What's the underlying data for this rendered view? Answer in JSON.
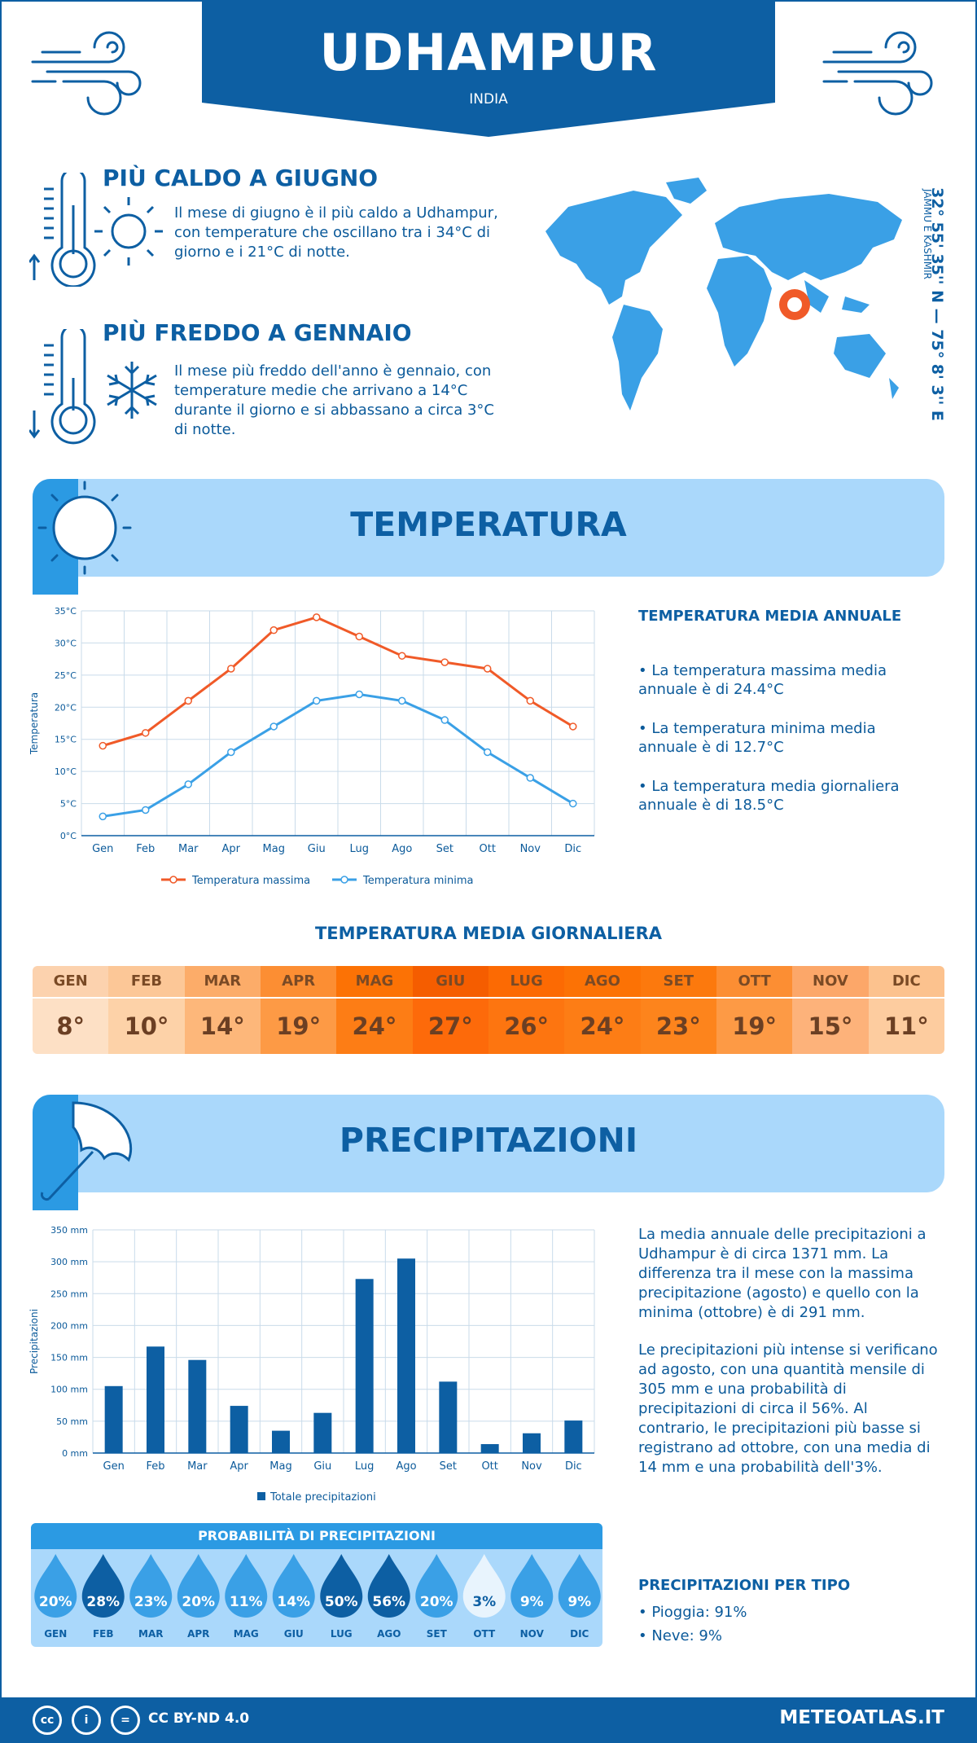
{
  "header": {
    "city": "UDHAMPUR",
    "country": "INDIA"
  },
  "hot": {
    "title": "PIÙ CALDO A GIUGNO",
    "text": "Il mese di giugno è il più caldo a Udhampur, con temperature che oscillano tra i 34°C di giorno e i 21°C di notte."
  },
  "cold": {
    "title": "PIÙ FREDDO A GENNAIO",
    "text": "Il mese più freddo dell'anno è gennaio, con temperature medie che arrivano a 14°C durante il giorno e si abbassano a circa 3°C di notte."
  },
  "location": {
    "coordinates": "32° 55' 35'' N — 75° 8' 3'' E",
    "region": "JAMMU E KASHMIR"
  },
  "temperature_section": {
    "title": "TEMPERATURA",
    "annual_title": "TEMPERATURA MEDIA ANNUALE",
    "bullets": [
      "• La temperatura massima media annuale è di 24.4°C",
      "• La temperatura minima media annuale è di 12.7°C",
      "• La temperatura media giornaliera annuale è di 18.5°C"
    ],
    "daily_title": "TEMPERATURA MEDIA GIORNALIERA",
    "daily": [
      {
        "month": "GEN",
        "value": "8°",
        "bg": "#fde0c5",
        "head": "#fcd2ae"
      },
      {
        "month": "FEB",
        "value": "10°",
        "bg": "#fdd2a8",
        "head": "#fcc797"
      },
      {
        "month": "MAR",
        "value": "14°",
        "bg": "#fdb77a",
        "head": "#fcac69"
      },
      {
        "month": "APR",
        "value": "19°",
        "bg": "#fd9a45",
        "head": "#fc8e33"
      },
      {
        "month": "MAG",
        "value": "24°",
        "bg": "#fd7d15",
        "head": "#fc7205"
      },
      {
        "month": "GIU",
        "value": "27°",
        "bg": "#fd6a0a",
        "head": "#f55d00"
      },
      {
        "month": "LUG",
        "value": "26°",
        "bg": "#fd7510",
        "head": "#fc6a03"
      },
      {
        "month": "AGO",
        "value": "24°",
        "bg": "#fd7d15",
        "head": "#fc7205"
      },
      {
        "month": "SET",
        "value": "23°",
        "bg": "#fd841c",
        "head": "#fc790d"
      },
      {
        "month": "OTT",
        "value": "19°",
        "bg": "#fd9a45",
        "head": "#fc8e33"
      },
      {
        "month": "NOV",
        "value": "15°",
        "bg": "#fdb27a",
        "head": "#fca769"
      },
      {
        "month": "DIC",
        "value": "11°",
        "bg": "#fdcc9f",
        "head": "#fcc28e"
      }
    ]
  },
  "precip_section": {
    "title": "PRECIPITAZIONI",
    "para1": "La media annuale delle precipitazioni a Udhampur è di circa 1371 mm. La differenza tra il mese con la massima precipitazione (agosto) e quello con la minima (ottobre) è di 291 mm.",
    "para2": "Le precipitazioni più intense si verificano ad agosto, con una quantità mensile di 305 mm e una probabilità di precipitazioni di circa il 56%. Al contrario, le precipitazioni più basse si registrano ad ottobre, con una media di 14 mm e una probabilità dell'3%.",
    "prob_title": "PROBABILITÀ DI PRECIPITAZIONI",
    "probabilities": [
      {
        "month": "GEN",
        "value": "20%",
        "color": "#3aa0e6"
      },
      {
        "month": "FEB",
        "value": "28%",
        "color": "#0d5fa3"
      },
      {
        "month": "MAR",
        "value": "23%",
        "color": "#3aa0e6"
      },
      {
        "month": "APR",
        "value": "20%",
        "color": "#3aa0e6"
      },
      {
        "month": "MAG",
        "value": "11%",
        "color": "#3aa0e6"
      },
      {
        "month": "GIU",
        "value": "14%",
        "color": "#3aa0e6"
      },
      {
        "month": "LUG",
        "value": "50%",
        "color": "#0d5fa3"
      },
      {
        "month": "AGO",
        "value": "56%",
        "color": "#0d5fa3"
      },
      {
        "month": "SET",
        "value": "20%",
        "color": "#3aa0e6"
      },
      {
        "month": "OTT",
        "value": "3%",
        "color": "#e8f4fd"
      },
      {
        "month": "NOV",
        "value": "9%",
        "color": "#3aa0e6"
      },
      {
        "month": "DIC",
        "value": "9%",
        "color": "#3aa0e6"
      }
    ],
    "type_title": "PRECIPITAZIONI PER TIPO",
    "types": [
      "• Pioggia: 91%",
      "• Neve: 9%"
    ]
  },
  "footer": {
    "license": "CC BY-ND 4.0",
    "site": "METEOATLAS.IT"
  },
  "chart_data": [
    {
      "type": "line",
      "categories": [
        "Gen",
        "Feb",
        "Mar",
        "Apr",
        "Mag",
        "Giu",
        "Lug",
        "Ago",
        "Set",
        "Ott",
        "Nov",
        "Dic"
      ],
      "series": [
        {
          "name": "Temperatura massima",
          "values": [
            14,
            16,
            21,
            26,
            32,
            34,
            31,
            28,
            27,
            26,
            21,
            17
          ],
          "color": "#f05a28"
        },
        {
          "name": "Temperatura minima",
          "values": [
            3,
            4,
            8,
            13,
            17,
            21,
            22,
            21,
            18,
            13,
            9,
            5
          ],
          "color": "#3aa0e6"
        }
      ],
      "ylabel": "Temperatura",
      "yticks": [
        "0°C",
        "5°C",
        "10°C",
        "15°C",
        "20°C",
        "25°C",
        "30°C",
        "35°C"
      ],
      "ylim": [
        0,
        35
      ],
      "grid": true,
      "legend": "bottom"
    },
    {
      "type": "bar",
      "categories": [
        "Gen",
        "Feb",
        "Mar",
        "Apr",
        "Mag",
        "Giu",
        "Lug",
        "Ago",
        "Set",
        "Ott",
        "Nov",
        "Dic"
      ],
      "series": [
        {
          "name": "Totale precipitazioni",
          "values": [
            105,
            167,
            146,
            74,
            35,
            63,
            273,
            305,
            112,
            14,
            31,
            51
          ],
          "color": "#0d5fa3"
        }
      ],
      "ylabel": "Precipitazioni",
      "yticks": [
        "0 mm",
        "50 mm",
        "100 mm",
        "150 mm",
        "200 mm",
        "250 mm",
        "300 mm",
        "350 mm"
      ],
      "ylim": [
        0,
        350
      ],
      "grid": true,
      "legend": "bottom"
    }
  ]
}
